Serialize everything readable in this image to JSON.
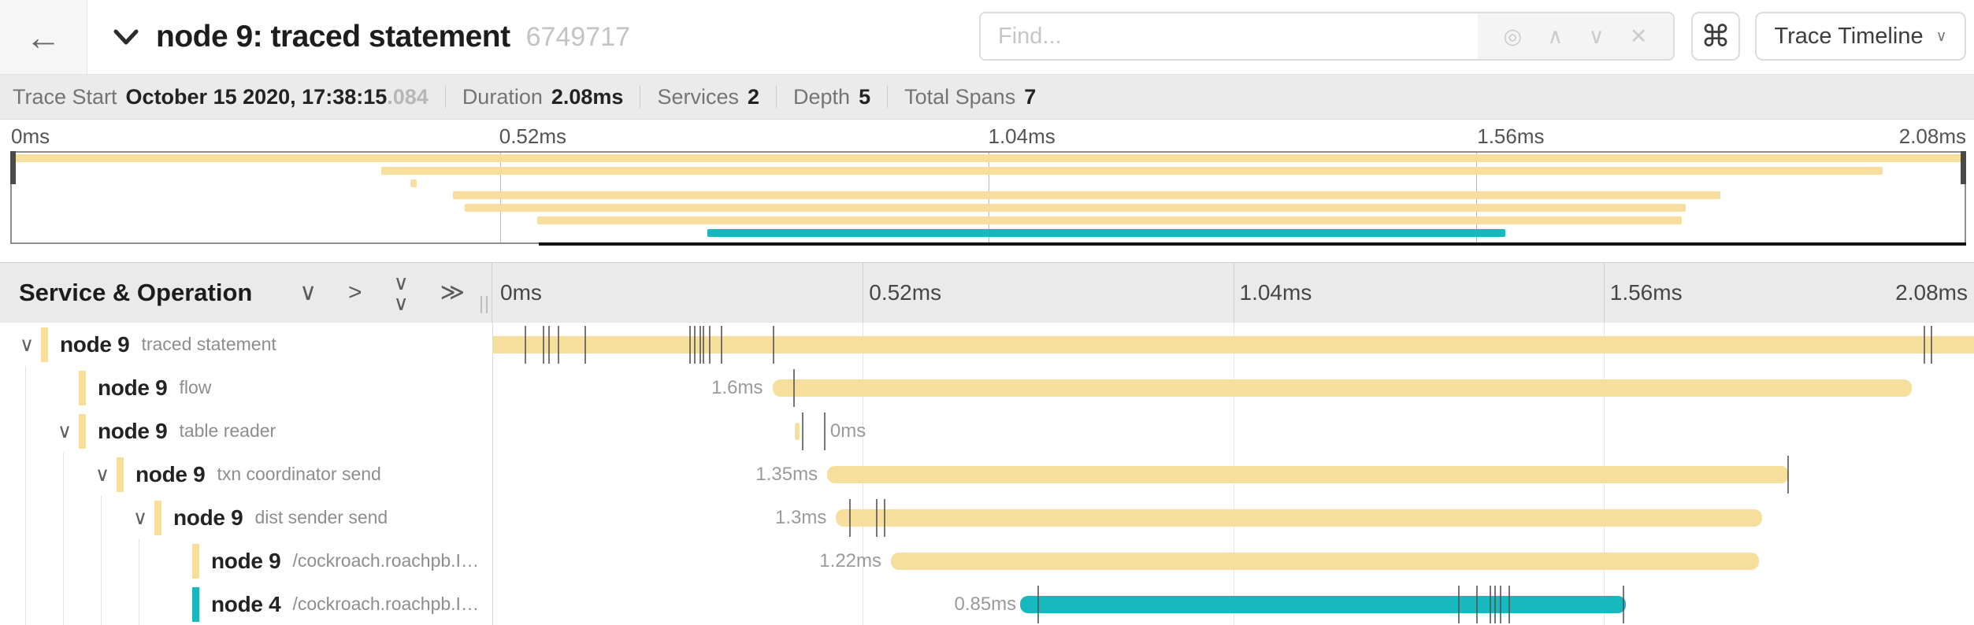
{
  "colors": {
    "tan": "#F6DE9C",
    "teal": "#17B8BE",
    "tick": "#4f4f4f",
    "grid": "#e4e4e4"
  },
  "header": {
    "back_icon": "←",
    "collapse_icon": "∨",
    "title": "node 9: traced statement",
    "trace_id": "6749717",
    "find": {
      "placeholder": "Find..."
    },
    "find_tools": {
      "locate_icon": "◎",
      "prev_icon": "∧",
      "next_icon": "∨",
      "clear_icon": "✕"
    },
    "shortcut_icon": "⌘",
    "view_selector": {
      "label": "Trace Timeline",
      "chevron": "∨"
    }
  },
  "summary": {
    "items": [
      {
        "label": "Trace Start",
        "value": "October 15 2020, 17:38:15",
        "suffix": ".084"
      },
      {
        "label": "Duration",
        "value": "2.08ms",
        "suffix": ""
      },
      {
        "label": "Services",
        "value": "2",
        "suffix": ""
      },
      {
        "label": "Depth",
        "value": "5",
        "suffix": ""
      },
      {
        "label": "Total Spans",
        "value": "7",
        "suffix": ""
      }
    ]
  },
  "timeline": {
    "tick_labels": [
      "0ms",
      "0.52ms",
      "1.04ms",
      "1.56ms",
      "2.08ms"
    ],
    "tick_pcts": [
      0,
      25,
      50,
      75,
      100
    ],
    "duration": "2.08ms"
  },
  "table": {
    "header": "Service & Operation",
    "icons": {
      "collapse_one": "∨",
      "expand_one": ">",
      "collapse_all": "∨∨",
      "expand_all": "≫"
    }
  },
  "minimap": {
    "scrub_start_pct": 27,
    "handles": [
      "left",
      "right"
    ]
  },
  "spans": [
    {
      "service": "node 9",
      "operation": "traced statement",
      "color": "tan",
      "depth": 0,
      "expandable": true,
      "start_pct": 0,
      "width_pct": 100,
      "duration_label": "",
      "label_side": "none",
      "label_pct": null,
      "ticks_pct": [
        2.2,
        3.4,
        3.8,
        4.4,
        6.2,
        13.3,
        13.6,
        14.0,
        14.2,
        14.6,
        15.4,
        18.9,
        96.6,
        97.1
      ]
    },
    {
      "service": "node 9",
      "operation": "flow",
      "color": "tan",
      "depth": 1,
      "expandable": false,
      "start_pct": 18.9,
      "width_pct": 76.9,
      "duration_label": "1.6ms",
      "label_side": "left",
      "label_pct": null,
      "ticks_pct": [
        20.3
      ]
    },
    {
      "service": "node 9",
      "operation": "table reader",
      "color": "tan",
      "depth": 1,
      "expandable": true,
      "start_pct": 20.4,
      "width_pct": 0.35,
      "duration_label": "0ms",
      "label_side": "right",
      "label_pct": 22.8,
      "ticks_pct": [
        20.9,
        22.4
      ]
    },
    {
      "service": "node 9",
      "operation": "txn coordinator send",
      "color": "tan",
      "depth": 2,
      "expandable": true,
      "start_pct": 22.6,
      "width_pct": 64.9,
      "duration_label": "1.35ms",
      "label_side": "left",
      "label_pct": null,
      "ticks_pct": [
        87.4
      ]
    },
    {
      "service": "node 9",
      "operation": "dist sender send",
      "color": "tan",
      "depth": 3,
      "expandable": true,
      "start_pct": 23.2,
      "width_pct": 62.5,
      "duration_label": "1.3ms",
      "label_side": "left",
      "label_pct": null,
      "ticks_pct": [
        24.1,
        25.9,
        26.4
      ]
    },
    {
      "service": "node 9",
      "operation": "/cockroach.roachpb.I…",
      "color": "tan",
      "depth": 4,
      "expandable": false,
      "start_pct": 26.9,
      "width_pct": 58.6,
      "duration_label": "1.22ms",
      "label_side": "left",
      "label_pct": null,
      "ticks_pct": []
    },
    {
      "service": "node 4",
      "operation": "/cockroach.roachpb.I…",
      "color": "teal",
      "depth": 4,
      "expandable": false,
      "start_pct": 35.6,
      "width_pct": 40.9,
      "duration_label": "0.85ms",
      "label_side": "left",
      "label_pct": 36.0,
      "ticks_pct": [
        36.8,
        65.2,
        66.4,
        67.3,
        67.6,
        68.0,
        68.6,
        76.3
      ]
    }
  ]
}
